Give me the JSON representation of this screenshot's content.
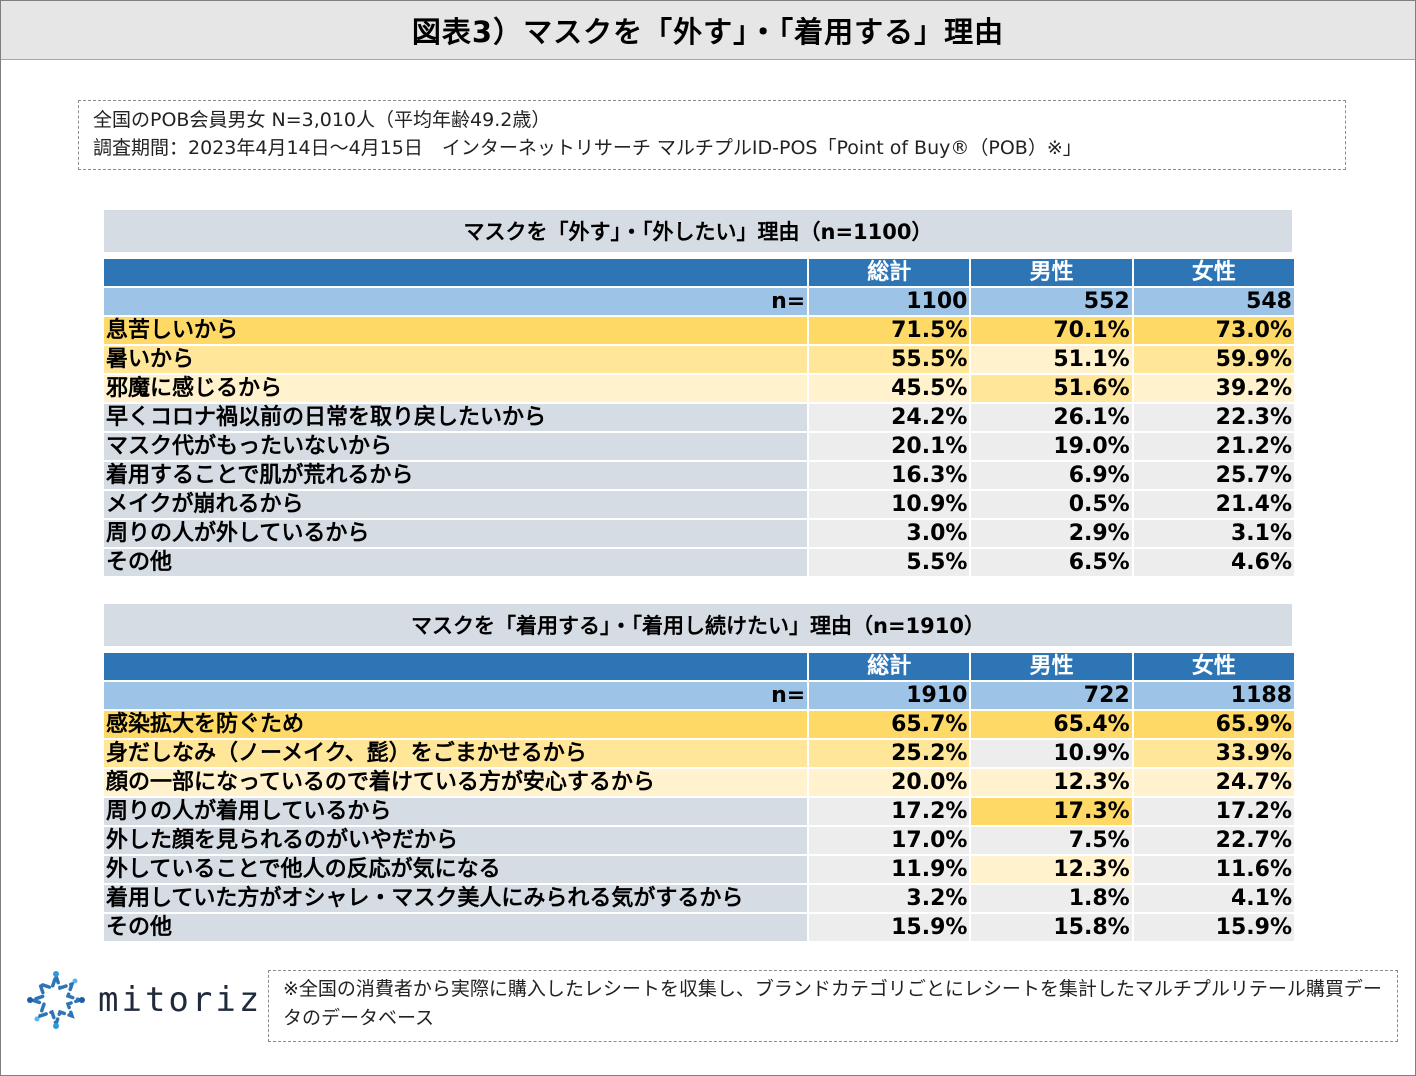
{
  "title": "図表3）マスクを「外す」・「着用する」理由",
  "info": {
    "line1": "全国のPOB会員男女 N=3,010人（平均年齢49.2歳）",
    "line2": "調査期間：2023年4月14日～4月15日　インターネットリサーチ マルチプルID-POS「Point of Buy®（POB）※」"
  },
  "chart_data": [
    {
      "type": "table",
      "title": "マスクを「外す」・「外したい」理由（n=1100）",
      "columns": [
        "総計",
        "男性",
        "女性"
      ],
      "n_label": "n=",
      "n_values": [
        "1100",
        "552",
        "548"
      ],
      "rows": [
        {
          "label": "息苦しいから",
          "values": [
            "71.5%",
            "70.1%",
            "73.0%"
          ],
          "shade": [
            "c1",
            "c1",
            "c1",
            "c1"
          ]
        },
        {
          "label": "暑いから",
          "values": [
            "55.5%",
            "51.1%",
            "59.9%"
          ],
          "shade": [
            "c2",
            "c2",
            "c3",
            "c2"
          ]
        },
        {
          "label": "邪魔に感じるから",
          "values": [
            "45.5%",
            "51.6%",
            "39.2%"
          ],
          "shade": [
            "c3",
            "c3",
            "c2",
            "c3"
          ]
        },
        {
          "label": "早くコロナ禍以前の日常を取り戻したいから",
          "values": [
            "24.2%",
            "26.1%",
            "22.3%"
          ],
          "shade": [
            "cg",
            "cw",
            "cw",
            "cw"
          ]
        },
        {
          "label": "マスク代がもったいないから",
          "values": [
            "20.1%",
            "19.0%",
            "21.2%"
          ],
          "shade": [
            "cg",
            "cw",
            "cw",
            "cw"
          ]
        },
        {
          "label": "着用することで肌が荒れるから",
          "values": [
            "16.3%",
            "6.9%",
            "25.7%"
          ],
          "shade": [
            "cg",
            "cw",
            "cw",
            "cw"
          ]
        },
        {
          "label": "メイクが崩れるから",
          "values": [
            "10.9%",
            "0.5%",
            "21.4%"
          ],
          "shade": [
            "cg",
            "cw",
            "cw",
            "cw"
          ]
        },
        {
          "label": "周りの人が外しているから",
          "values": [
            "3.0%",
            "2.9%",
            "3.1%"
          ],
          "shade": [
            "cg",
            "cw",
            "cw",
            "cw"
          ]
        },
        {
          "label": "その他",
          "values": [
            "5.5%",
            "6.5%",
            "4.6%"
          ],
          "shade": [
            "cg",
            "cw",
            "cw",
            "cw"
          ]
        }
      ]
    },
    {
      "type": "table",
      "title": "マスクを「着用する」・「着用し続けたい」理由（n=1910）",
      "columns": [
        "総計",
        "男性",
        "女性"
      ],
      "n_label": "n=",
      "n_values": [
        "1910",
        "722",
        "1188"
      ],
      "rows": [
        {
          "label": "感染拡大を防ぐため",
          "values": [
            "65.7%",
            "65.4%",
            "65.9%"
          ],
          "shade": [
            "c1",
            "c1",
            "c1",
            "c1"
          ]
        },
        {
          "label": "身だしなみ（ノーメイク、髭）をごまかせるから",
          "values": [
            "25.2%",
            "10.9%",
            "33.9%"
          ],
          "shade": [
            "c2",
            "c2",
            "cw",
            "c2"
          ]
        },
        {
          "label": "顔の一部になっているので着けている方が安心するから",
          "values": [
            "20.0%",
            "12.3%",
            "24.7%"
          ],
          "shade": [
            "c3",
            "c3",
            "c3",
            "c3"
          ]
        },
        {
          "label": "周りの人が着用しているから",
          "values": [
            "17.2%",
            "17.3%",
            "17.2%"
          ],
          "shade": [
            "cg",
            "cw",
            "c1",
            "cw"
          ]
        },
        {
          "label": "外した顔を見られるのがいやだから",
          "values": [
            "17.0%",
            "7.5%",
            "22.7%"
          ],
          "shade": [
            "cg",
            "cw",
            "cw",
            "cw"
          ]
        },
        {
          "label": "外していることで他人の反応が気になる",
          "values": [
            "11.9%",
            "12.3%",
            "11.6%"
          ],
          "shade": [
            "cg",
            "cw",
            "c3",
            "cw"
          ]
        },
        {
          "label": "着用していた方がオシャレ・マスク美人にみられる気がするから",
          "values": [
            "3.2%",
            "1.8%",
            "4.1%"
          ],
          "shade": [
            "cg",
            "cw",
            "cw",
            "cw"
          ]
        },
        {
          "label": "その他",
          "values": [
            "15.9%",
            "15.8%",
            "15.9%"
          ],
          "shade": [
            "cg",
            "cw",
            "cw",
            "cw"
          ]
        }
      ]
    }
  ],
  "logo": {
    "text": "mitoriz",
    "icon": "sparkle-ring-icon",
    "accent": "#2e75b6"
  },
  "footnote": "※全国の消費者から実際に購入したレシートを収集し、ブランドカテゴリごとにレシートを集計したマルチプルリテール購買データのデータベース"
}
